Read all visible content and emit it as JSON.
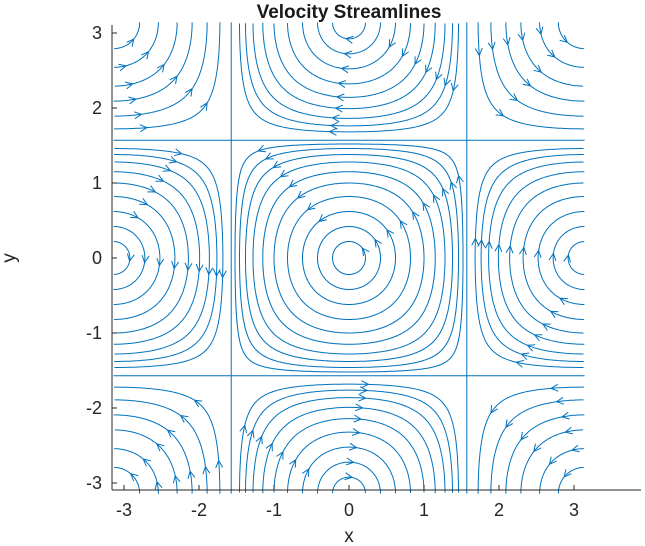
{
  "chart_data": {
    "type": "streamline",
    "title": "Velocity Streamlines",
    "xlabel": "x",
    "ylabel": "y",
    "xlim": [
      -3.14159,
      3.14159
    ],
    "ylim": [
      -3.14159,
      3.14159
    ],
    "xticks": [
      -3,
      -2,
      -1,
      0,
      1,
      2,
      3
    ],
    "yticks": [
      3,
      2,
      1,
      0,
      -1,
      -2,
      -3
    ],
    "xtick_labels": [
      "-3",
      "-2",
      "-1",
      "0",
      "1",
      "2",
      "3"
    ],
    "ytick_labels": [
      "3",
      "2",
      "1",
      "0",
      "-1",
      "-2",
      "-3"
    ],
    "field": {
      "u": "-sin(y) * cos(x)",
      "v": "sin(x) * cos(y)"
    },
    "vortex_centers": [
      {
        "x": 0,
        "y": 0,
        "rotation": "counterclockwise"
      },
      {
        "x": 3.14159,
        "y": 0,
        "rotation": "clockwise"
      },
      {
        "x": -3.14159,
        "y": 0,
        "rotation": "clockwise"
      },
      {
        "x": 0,
        "y": 3.14159,
        "rotation": "clockwise"
      },
      {
        "x": 0,
        "y": -3.14159,
        "rotation": "clockwise"
      }
    ],
    "separatrices": {
      "x": [
        -1.5708,
        1.5708
      ],
      "y": [
        -1.5708,
        1.5708
      ]
    },
    "grid": false,
    "legend": "none",
    "color": "#0072BD"
  }
}
